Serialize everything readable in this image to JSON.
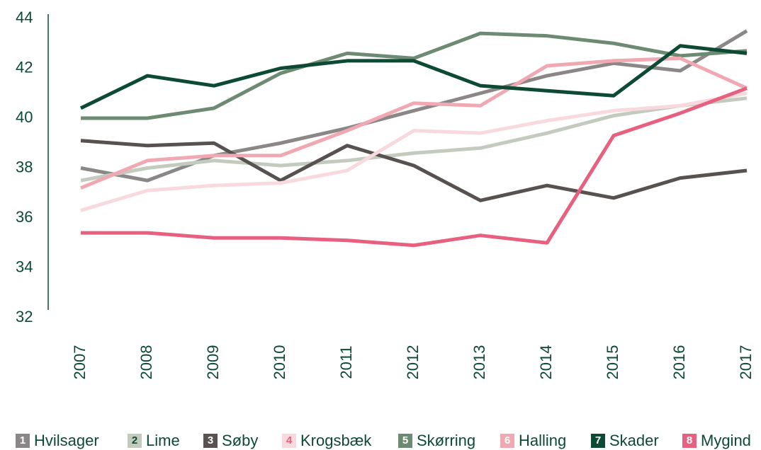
{
  "chart_data": {
    "type": "line",
    "categories": [
      "2007",
      "2008",
      "2009",
      "2010",
      "2011",
      "2012",
      "2013",
      "2014",
      "2015",
      "2016",
      "2017"
    ],
    "ylim": [
      32,
      44
    ],
    "yticks": [
      32,
      34,
      36,
      38,
      40,
      42,
      44
    ],
    "series": [
      {
        "name": "Hvilsager",
        "marker": "1",
        "color": "#8b8787",
        "values": [
          38.0,
          37.5,
          38.5,
          39.0,
          39.6,
          40.3,
          41.0,
          41.7,
          42.2,
          41.9,
          43.5
        ]
      },
      {
        "name": "Lime",
        "marker": "2",
        "color": "#c3cbbf",
        "values": [
          37.5,
          38.0,
          38.3,
          38.1,
          38.3,
          38.6,
          38.8,
          39.4,
          40.1,
          40.5,
          40.8
        ]
      },
      {
        "name": "Søby",
        "marker": "3",
        "color": "#57514f",
        "values": [
          39.1,
          38.9,
          39.0,
          37.5,
          38.9,
          38.1,
          36.7,
          37.3,
          36.8,
          37.6,
          37.9
        ]
      },
      {
        "name": "Krogsbæk",
        "marker": "4",
        "color": "#f8dade",
        "values": [
          36.3,
          37.1,
          37.3,
          37.4,
          37.9,
          39.5,
          39.4,
          39.9,
          40.3,
          40.5,
          41.0
        ]
      },
      {
        "name": "Skørring",
        "marker": "5",
        "color": "#6d8a72",
        "values": [
          40.0,
          40.0,
          40.4,
          41.8,
          42.6,
          42.4,
          43.4,
          43.3,
          43.0,
          42.5,
          42.7
        ]
      },
      {
        "name": "Halling",
        "marker": "6",
        "color": "#f0a8b2",
        "values": [
          37.2,
          38.3,
          38.5,
          38.5,
          39.5,
          40.6,
          40.5,
          42.1,
          42.3,
          42.4,
          41.2
        ]
      },
      {
        "name": "Skader",
        "marker": "7",
        "color": "#0d4a33",
        "values": [
          40.4,
          41.7,
          41.3,
          42.0,
          42.3,
          42.3,
          41.3,
          41.1,
          40.9,
          42.9,
          42.6
        ]
      },
      {
        "name": "Mygind",
        "marker": "8",
        "color": "#e8607f",
        "values": [
          35.4,
          35.4,
          35.2,
          35.2,
          35.1,
          34.9,
          35.3,
          35.0,
          39.3,
          40.2,
          41.2
        ]
      }
    ]
  }
}
